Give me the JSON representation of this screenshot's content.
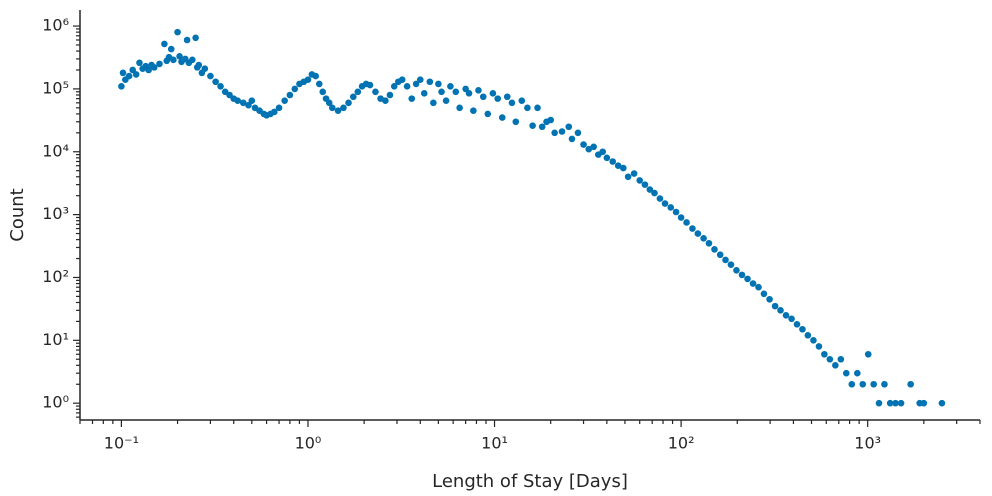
{
  "chart_data": {
    "type": "scatter",
    "xlabel": "Length of Stay [Days]",
    "ylabel": "Count",
    "color": "#0173b2",
    "xscale": "log",
    "yscale": "log",
    "xlim": [
      0.06,
      4000
    ],
    "ylim": [
      0.54,
      1800000
    ],
    "xticks": [
      {
        "value": 0.1,
        "label": "10⁻¹"
      },
      {
        "value": 1,
        "label": "10⁰"
      },
      {
        "value": 10,
        "label": "10¹"
      },
      {
        "value": 100,
        "label": "10²"
      },
      {
        "value": 1000,
        "label": "10³"
      }
    ],
    "yticks": [
      {
        "value": 1,
        "label": "10⁰"
      },
      {
        "value": 10,
        "label": "10¹"
      },
      {
        "value": 100,
        "label": "10²"
      },
      {
        "value": 1000,
        "label": "10³"
      },
      {
        "value": 10000,
        "label": "10⁴"
      },
      {
        "value": 100000,
        "label": "10⁵"
      },
      {
        "value": 1000000,
        "label": "10⁶"
      }
    ],
    "x": [
      0.1,
      0.102,
      0.105,
      0.11,
      0.115,
      0.12,
      0.125,
      0.13,
      0.135,
      0.14,
      0.145,
      0.15,
      0.16,
      0.17,
      0.175,
      0.18,
      0.185,
      0.19,
      0.2,
      0.205,
      0.21,
      0.22,
      0.225,
      0.23,
      0.24,
      0.25,
      0.255,
      0.26,
      0.27,
      0.28,
      0.3,
      0.32,
      0.34,
      0.36,
      0.38,
      0.4,
      0.42,
      0.45,
      0.48,
      0.5,
      0.52,
      0.55,
      0.58,
      0.6,
      0.63,
      0.66,
      0.7,
      0.75,
      0.8,
      0.85,
      0.9,
      0.95,
      1.0,
      1.05,
      1.1,
      1.15,
      1.2,
      1.25,
      1.3,
      1.35,
      1.45,
      1.55,
      1.65,
      1.75,
      1.85,
      1.95,
      2.05,
      2.15,
      2.3,
      2.45,
      2.6,
      2.75,
      2.9,
      3.05,
      3.2,
      3.4,
      3.6,
      3.8,
      4.0,
      4.2,
      4.5,
      4.7,
      5.0,
      5.2,
      5.5,
      5.8,
      6.2,
      6.5,
      7.0,
      7.3,
      7.7,
      8.2,
      8.7,
      9.2,
      9.8,
      10.4,
      11,
      11.7,
      12.4,
      13,
      14,
      15,
      16,
      17,
      18,
      19,
      20,
      21,
      23,
      25,
      26,
      28,
      30,
      32,
      34,
      36,
      38,
      40,
      43,
      46,
      49,
      52,
      56,
      60,
      64,
      68,
      72,
      77,
      82,
      88,
      94,
      100,
      107,
      115,
      123,
      132,
      141,
      151,
      162,
      173,
      185,
      198,
      212,
      227,
      243,
      260,
      278,
      298,
      319,
      341,
      365,
      391,
      418,
      447,
      478,
      512,
      548,
      586,
      627,
      671,
      718,
      768,
      822,
      880,
      941,
      1007,
      1077,
      1150,
      1230,
      1320,
      1410,
      1510,
      1700,
      1900,
      2000,
      2500
    ],
    "values": [
      110000,
      180000,
      140000,
      160000,
      200000,
      170000,
      260000,
      210000,
      230000,
      200000,
      240000,
      220000,
      250000,
      520000,
      280000,
      320000,
      430000,
      290000,
      800000,
      330000,
      270000,
      300000,
      600000,
      260000,
      290000,
      650000,
      220000,
      240000,
      180000,
      210000,
      160000,
      130000,
      110000,
      90000,
      80000,
      70000,
      65000,
      60000,
      55000,
      65000,
      50000,
      45000,
      40000,
      38000,
      40000,
      43000,
      50000,
      65000,
      80000,
      100000,
      120000,
      130000,
      140000,
      170000,
      160000,
      120000,
      90000,
      70000,
      60000,
      50000,
      45000,
      50000,
      60000,
      75000,
      90000,
      110000,
      120000,
      115000,
      90000,
      70000,
      65000,
      80000,
      110000,
      130000,
      140000,
      110000,
      70000,
      120000,
      140000,
      85000,
      130000,
      60000,
      120000,
      90000,
      65000,
      110000,
      90000,
      50000,
      100000,
      85000,
      45000,
      95000,
      75000,
      40000,
      85000,
      70000,
      35000,
      75000,
      60000,
      30000,
      65000,
      50000,
      26000,
      50000,
      25000,
      30000,
      32000,
      20000,
      21000,
      25000,
      16000,
      20000,
      13000,
      11000,
      12000,
      9000,
      10000,
      8000,
      7000,
      6000,
      5500,
      4000,
      4500,
      3500,
      3000,
      2500,
      2200,
      1800,
      1500,
      1300,
      1100,
      900,
      750,
      600,
      500,
      420,
      350,
      280,
      230,
      190,
      160,
      130,
      110,
      95,
      80,
      70,
      55,
      45,
      35,
      30,
      25,
      22,
      18,
      15,
      12,
      10,
      8,
      6,
      5,
      4,
      5,
      3,
      2,
      3,
      2,
      6,
      2,
      1,
      2,
      1,
      1,
      1,
      2,
      1,
      1,
      1
    ]
  }
}
